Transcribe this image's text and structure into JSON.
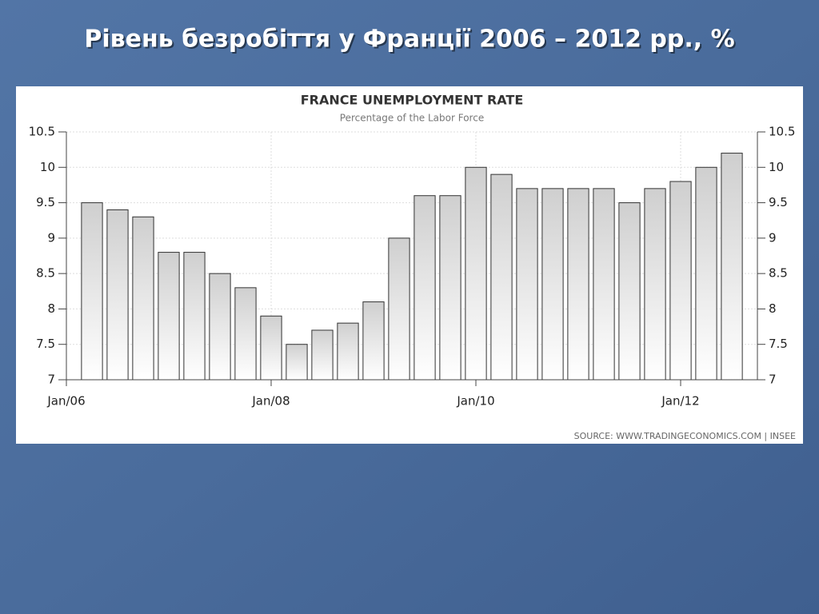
{
  "slide_title": "Рівень безробіття у Франції 2006 – 2012 рр., %",
  "chart_data": {
    "type": "bar",
    "title": "FRANCE UNEMPLOYMENT RATE",
    "subtitle": "Percentage of the Labor Force",
    "source": "SOURCE: WWW.TRADINGECONOMICS.COM | INSEE",
    "xtick_labels": [
      "Jan/06",
      "Jan/08",
      "Jan/10",
      "Jan/12"
    ],
    "values": [
      9.5,
      9.4,
      9.3,
      8.8,
      8.8,
      8.5,
      8.3,
      7.9,
      7.5,
      7.7,
      7.8,
      8.1,
      9.0,
      9.6,
      9.6,
      10.0,
      9.9,
      9.7,
      9.7,
      9.7,
      9.7,
      9.5,
      9.7,
      9.8,
      10.0,
      10.2
    ],
    "color": "#d8d8d8",
    "ylim": [
      7,
      10.5
    ],
    "yticks": [
      7,
      7.5,
      8,
      8.5,
      9,
      9.5,
      10,
      10.5
    ],
    "y2lim": [
      7,
      10.5
    ],
    "y2ticks": [
      7,
      7.5,
      8,
      8.5,
      9,
      9.5,
      10,
      10.5
    ],
    "grid": true
  }
}
